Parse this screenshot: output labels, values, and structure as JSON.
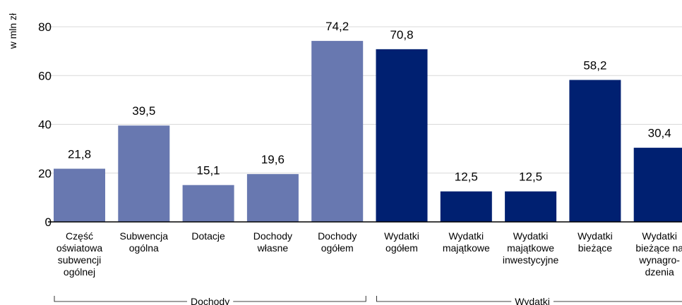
{
  "chart_data": {
    "type": "bar",
    "ylabel": "w mln zł",
    "ylim": [
      0,
      80
    ],
    "yticks": [
      0,
      20,
      40,
      60,
      80
    ],
    "grid": true,
    "categories": [
      [
        "Część",
        "oświatowa",
        "subwencji",
        "ogólnej"
      ],
      [
        "Subwencja",
        "ogólna"
      ],
      [
        "Dotacje"
      ],
      [
        "Dochody",
        "własne"
      ],
      [
        "Dochody",
        "ogółem"
      ],
      [
        "Wydatki",
        "ogółem"
      ],
      [
        "Wydatki",
        "majątkowe"
      ],
      [
        "Wydatki",
        "majątkowe",
        "inwestycyjne"
      ],
      [
        "Wydatki",
        "bieżące"
      ],
      [
        "Wydatki",
        "bieżące na",
        "wynagro-",
        "dzenia"
      ]
    ],
    "values": [
      21.8,
      39.5,
      15.1,
      19.6,
      74.2,
      70.8,
      12.5,
      12.5,
      58.2,
      30.4
    ],
    "value_labels": [
      "21,8",
      "39,5",
      "15,1",
      "19,6",
      "74,2",
      "70,8",
      "12,5",
      "12,5",
      "58,2",
      "30,4"
    ],
    "groups": [
      {
        "label": "Dochody",
        "from": 0,
        "to": 4,
        "color": "#6878b0"
      },
      {
        "label": "Wydatki",
        "from": 5,
        "to": 9,
        "color": "#002071"
      }
    ],
    "colors": {
      "grid": "#d9d9d9",
      "axis": "#000000"
    }
  }
}
